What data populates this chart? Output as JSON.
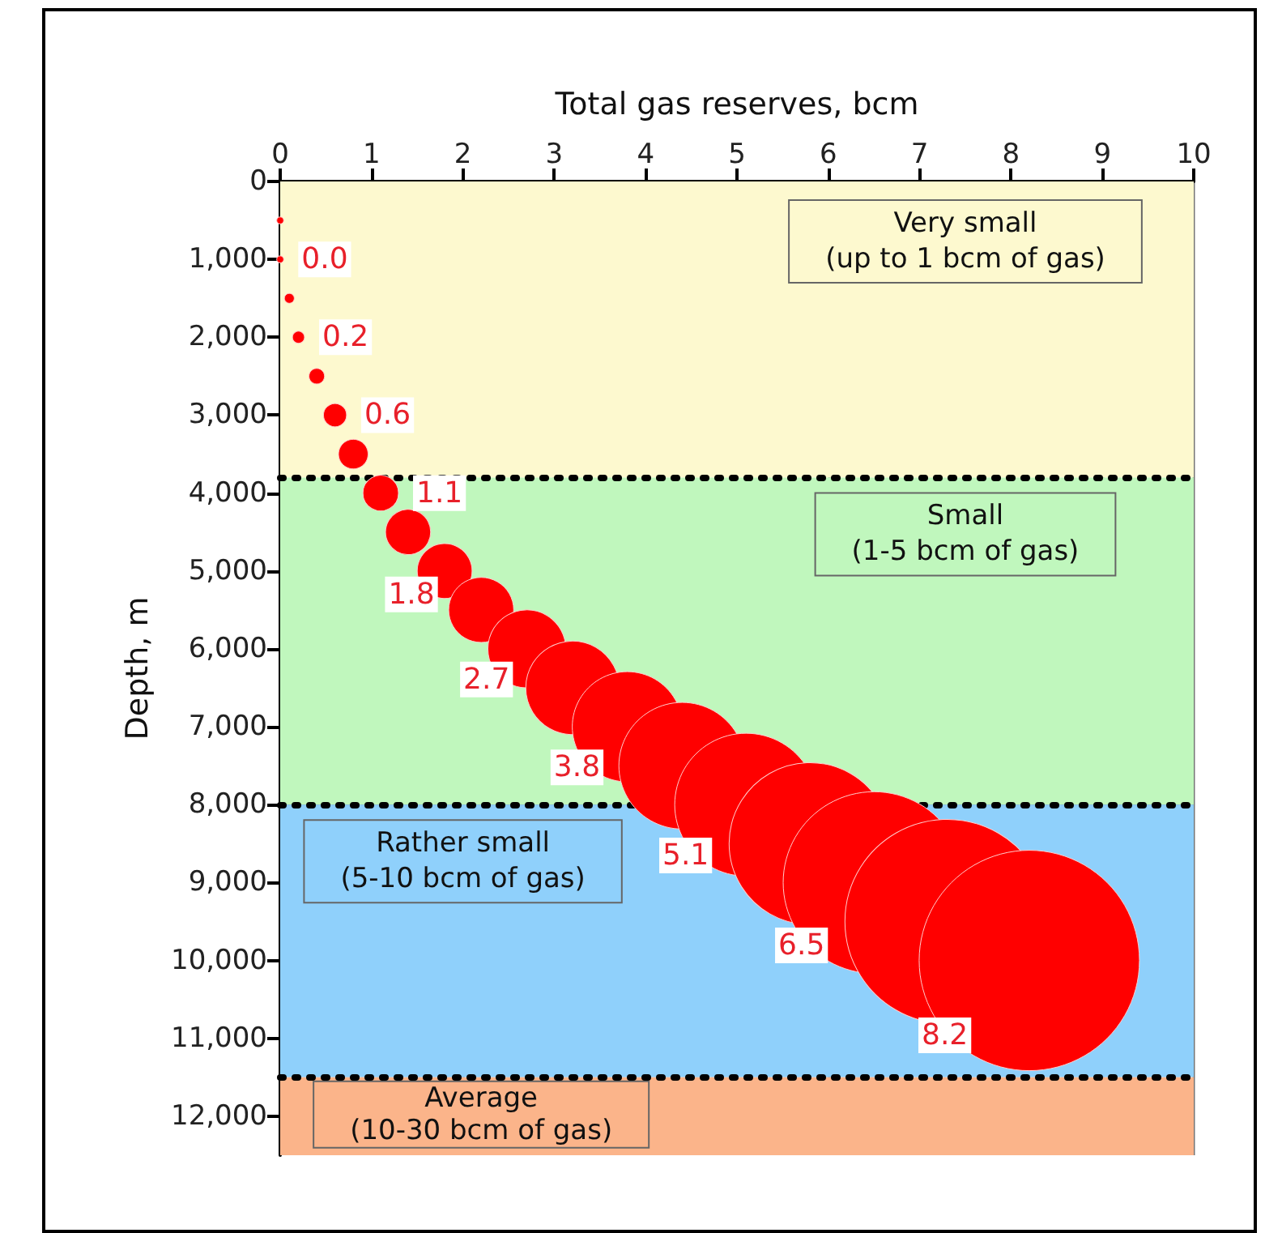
{
  "chart_data": {
    "type": "bubble",
    "xlabel": "Total gas reserves, bcm",
    "ylabel": "Depth, m",
    "xlim": [
      0,
      10
    ],
    "xticks": [
      0,
      1,
      2,
      3,
      4,
      5,
      6,
      7,
      8,
      9,
      10
    ],
    "ylim": [
      12500,
      0
    ],
    "yticks": [
      0,
      {
        "value": 1000,
        "label": "1,000"
      },
      {
        "value": 2000,
        "label": "2,000"
      },
      {
        "value": 3000,
        "label": "3,000"
      },
      {
        "value": 4000,
        "label": "4,000"
      },
      {
        "value": 5000,
        "label": "5,000"
      },
      {
        "value": 6000,
        "label": "6,000"
      },
      {
        "value": 7000,
        "label": "7,000"
      },
      {
        "value": 8000,
        "label": "8,000"
      },
      {
        "value": 9000,
        "label": "9,000"
      },
      {
        "value": 10000,
        "label": "10,000"
      },
      {
        "value": 11000,
        "label": "11,000"
      },
      {
        "value": 12000,
        "label": "12,000"
      }
    ],
    "grid": true,
    "series": [
      {
        "color": "#ff0000",
        "x": [
          0.0,
          0.0,
          0.1,
          0.2,
          0.4,
          0.6,
          0.8,
          1.1,
          1.4,
          1.8,
          2.2,
          2.7,
          3.2,
          3.8,
          4.4,
          5.1,
          5.8,
          6.5,
          7.3,
          8.2
        ],
        "values": [
          500,
          1000,
          1500,
          2000,
          2500,
          3000,
          3500,
          4000,
          4500,
          5000,
          5500,
          6000,
          6500,
          7000,
          7500,
          8000,
          8500,
          9000,
          9500,
          10000
        ],
        "sizes": [
          0.001,
          0.001,
          0.002,
          0.003,
          0.005,
          0.011,
          0.018,
          0.026,
          0.042,
          0.062,
          0.087,
          0.125,
          0.18,
          0.25,
          0.33,
          0.42,
          0.54,
          0.68,
          0.86,
          1
        ]
      }
    ],
    "annotations": [
      {
        "text": "0.0",
        "x": 0.0,
        "y": 1000
      },
      {
        "text": "0.2",
        "x": 0.2,
        "y": 2000
      },
      {
        "text": "0.6",
        "x": 0.6,
        "y": 3000
      },
      {
        "text": "1.1",
        "x": 1.1,
        "y": 4000
      },
      {
        "text": "1.8",
        "x": 1.8,
        "y": 5000
      },
      {
        "text": "2.7",
        "x": 2.7,
        "y": 6000
      },
      {
        "text": "3.8",
        "x": 3.8,
        "y": 7000
      },
      {
        "text": "5.1",
        "x": 5.1,
        "y": 8000
      },
      {
        "text": "6.5",
        "x": 6.5,
        "y": 9000
      },
      {
        "text": "8.2",
        "x": 8.2,
        "y": 10000
      }
    ],
    "bands": [
      {
        "axis": "y",
        "from": 0,
        "to": 3800,
        "label": "Very small\n(up to 1 bcm of gas)",
        "color": "#fdf9cf"
      },
      {
        "axis": "y",
        "from": 3800,
        "to": 8000,
        "label": "Small\n(1-5 bcm of gas)",
        "color": "#c0f7bd"
      },
      {
        "axis": "y",
        "from": 8000,
        "to": 11500,
        "label": "Rather small\n(5-10 bcm of gas)",
        "color": "#8fd0fb"
      },
      {
        "axis": "y",
        "from": 11500,
        "to": 12500,
        "label": "Average\n(10-30 bcm of gas)",
        "color": "#fbb48a"
      }
    ],
    "ref_lines": [
      {
        "axis": "y",
        "value": 3800,
        "color": "#000000",
        "line_style": "dotted"
      },
      {
        "axis": "y",
        "value": 8000,
        "color": "#000000",
        "line_style": "dotted"
      },
      {
        "axis": "y",
        "value": 11500,
        "color": "#000000",
        "line_style": "dotted"
      }
    ]
  }
}
